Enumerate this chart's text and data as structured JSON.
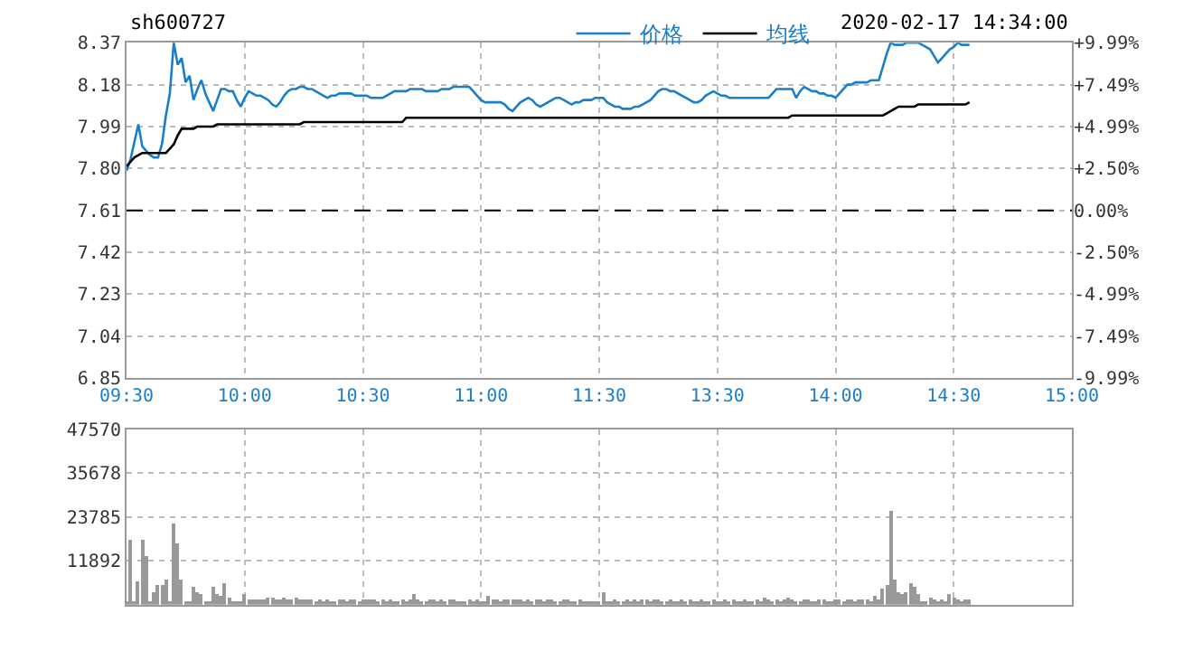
{
  "chart_data": [
    {
      "type": "line",
      "title": "sh600727",
      "annotations": [
        "2020-02-17 14:34:00"
      ],
      "legend": "top",
      "grid": true,
      "categories": [
        "09:30",
        null,
        null,
        null,
        null,
        null,
        null,
        null,
        null,
        null,
        null,
        null,
        null,
        null,
        null,
        null,
        null,
        null,
        null,
        null,
        null,
        null,
        null,
        null,
        null,
        null,
        null,
        null,
        null,
        null,
        "10:00",
        null,
        null,
        null,
        null,
        null,
        null,
        null,
        null,
        null,
        null,
        null,
        null,
        null,
        null,
        null,
        null,
        null,
        null,
        null,
        null,
        null,
        null,
        null,
        null,
        null,
        null,
        null,
        null,
        null,
        "10:30",
        null,
        null,
        null,
        null,
        null,
        null,
        null,
        null,
        null,
        null,
        null,
        null,
        null,
        null,
        null,
        null,
        null,
        null,
        null,
        null,
        null,
        null,
        null,
        null,
        null,
        null,
        null,
        null,
        null,
        "11:00",
        null,
        null,
        null,
        null,
        null,
        null,
        null,
        null,
        null,
        null,
        null,
        null,
        null,
        null,
        null,
        null,
        null,
        null,
        null,
        null,
        null,
        null,
        null,
        null,
        null,
        null,
        null,
        null,
        null,
        "11:30",
        null,
        null,
        null,
        null,
        null,
        null,
        null,
        null,
        null,
        null,
        null,
        null,
        null,
        null,
        null,
        null,
        null,
        null,
        null,
        null,
        null,
        null,
        null,
        null,
        null,
        null,
        null,
        null,
        null,
        "13:30",
        null,
        null,
        null,
        null,
        null,
        null,
        null,
        null,
        null,
        null,
        null,
        null,
        null,
        null,
        null,
        null,
        null,
        null,
        null,
        null,
        null,
        null,
        null,
        null,
        null,
        null,
        null,
        null,
        null,
        "14:00",
        null,
        null,
        null,
        null,
        null,
        null,
        null,
        null,
        null,
        null,
        null,
        null,
        null,
        null,
        null,
        null,
        null,
        null,
        null,
        null,
        null,
        null,
        null,
        null,
        null,
        null,
        null,
        null,
        null,
        "14:30",
        null,
        null,
        null,
        null,
        null,
        null,
        null,
        null,
        null,
        null,
        null,
        null,
        null,
        null,
        null,
        null,
        null,
        null,
        null,
        null,
        null,
        null,
        null,
        null,
        null,
        null,
        null,
        null,
        null,
        "15:00"
      ],
      "ylim": [
        6.85,
        8.37
      ],
      "yticks": [
        6.85,
        7.04,
        7.23,
        7.42,
        7.61,
        {
          "value": 7.8,
          "label": "7.80"
        },
        7.99,
        8.18,
        8.37
      ],
      "y2lim": [
        -9.99,
        9.99
      ],
      "y2ticks": [
        {
          "value": -9.99,
          "label": "-9.99%"
        },
        {
          "value": -7.49,
          "label": "-7.49%"
        },
        {
          "value": -4.99,
          "label": "-4.99%"
        },
        {
          "value": -2.5,
          "label": "-2.50%"
        },
        {
          "value": 0,
          "label": "0.00%"
        },
        {
          "value": 2.5,
          "label": "+2.50%"
        },
        {
          "value": 4.99,
          "label": "+4.99%"
        },
        {
          "value": 7.49,
          "label": "+7.49%"
        },
        {
          "value": 9.99,
          "label": "+9.99%"
        }
      ],
      "ref_lines": [
        {
          "axis": "y",
          "value": 7.61,
          "color": "#000000",
          "line_style": "dashed"
        }
      ],
      "series": [
        {
          "name": "价格",
          "color": "#1a7fc8",
          "values": [
            7.79,
            7.84,
            7.92,
            8.0,
            7.9,
            7.88,
            7.86,
            7.85,
            7.85,
            7.91,
            8.04,
            8.14,
            8.37,
            8.27,
            8.3,
            8.19,
            8.22,
            8.11,
            8.16,
            8.2,
            8.14,
            8.1,
            8.06,
            8.11,
            8.16,
            8.16,
            8.15,
            8.15,
            8.11,
            8.08,
            8.12,
            8.15,
            8.14,
            8.13,
            8.13,
            8.12,
            8.11,
            8.09,
            8.08,
            8.1,
            8.13,
            8.15,
            8.16,
            8.16,
            8.17,
            8.17,
            8.16,
            8.16,
            8.15,
            8.14,
            8.13,
            8.12,
            8.13,
            8.13,
            8.14,
            8.14,
            8.14,
            8.14,
            8.13,
            8.13,
            8.13,
            8.13,
            8.12,
            8.12,
            8.12,
            8.12,
            8.13,
            8.14,
            8.15,
            8.15,
            8.15,
            8.15,
            8.16,
            8.16,
            8.16,
            8.16,
            8.15,
            8.15,
            8.15,
            8.15,
            8.16,
            8.16,
            8.16,
            8.17,
            8.17,
            8.17,
            8.17,
            8.17,
            8.15,
            8.13,
            8.11,
            8.1,
            8.1,
            8.1,
            8.1,
            8.1,
            8.09,
            8.07,
            8.06,
            8.08,
            8.1,
            8.11,
            8.12,
            8.11,
            8.09,
            8.08,
            8.09,
            8.1,
            8.11,
            8.12,
            8.12,
            8.11,
            8.1,
            8.09,
            8.1,
            8.1,
            8.11,
            8.11,
            8.11,
            8.12,
            8.12,
            8.12,
            8.1,
            8.09,
            8.08,
            8.08,
            8.07,
            8.07,
            8.07,
            8.08,
            8.08,
            8.09,
            8.1,
            8.11,
            8.13,
            8.15,
            8.16,
            8.16,
            8.15,
            8.15,
            8.14,
            8.13,
            8.12,
            8.11,
            8.1,
            8.1,
            8.11,
            8.13,
            8.14,
            8.15,
            8.14,
            8.13,
            8.13,
            8.12,
            8.12,
            8.12,
            8.12,
            8.12,
            8.12,
            8.12,
            8.12,
            8.12,
            8.12,
            8.12,
            8.14,
            8.16,
            8.16,
            8.16,
            8.16,
            8.16,
            8.12,
            8.15,
            8.17,
            8.16,
            8.15,
            8.15,
            8.14,
            8.14,
            8.13,
            8.13,
            8.12,
            8.14,
            8.16,
            8.18,
            8.18,
            8.19,
            8.19,
            8.19,
            8.19,
            8.2,
            8.2,
            8.2,
            8.26,
            8.32,
            8.37,
            8.36,
            8.36,
            8.36,
            8.37,
            8.37,
            8.37,
            8.37,
            8.36,
            8.35,
            8.34,
            8.31,
            8.28,
            8.3,
            8.32,
            8.34,
            8.35,
            8.37,
            8.36,
            8.36,
            8.36,
            null,
            null,
            null,
            null,
            null,
            null,
            null,
            null,
            null,
            null,
            null,
            null,
            null,
            null,
            null,
            null,
            null,
            null,
            null,
            null,
            null,
            null,
            null,
            null,
            null,
            null
          ]
        },
        {
          "name": "均线",
          "color": "#000000",
          "values": [
            7.81,
            7.83,
            7.85,
            7.86,
            7.87,
            7.87,
            7.87,
            7.87,
            7.87,
            7.87,
            7.87,
            7.89,
            7.91,
            7.95,
            7.98,
            7.98,
            7.98,
            7.98,
            7.99,
            7.99,
            7.99,
            7.99,
            7.99,
            8.0,
            8.0,
            8.0,
            8.0,
            8.0,
            8.0,
            8.0,
            8.0,
            8.0,
            8.0,
            8.0,
            8.0,
            8.0,
            8.0,
            8.0,
            8.0,
            8.0,
            8.0,
            8.0,
            8.0,
            8.0,
            8.0,
            8.01,
            8.01,
            8.01,
            8.01,
            8.01,
            8.01,
            8.01,
            8.01,
            8.01,
            8.01,
            8.01,
            8.01,
            8.01,
            8.01,
            8.01,
            8.01,
            8.01,
            8.01,
            8.01,
            8.01,
            8.01,
            8.01,
            8.01,
            8.01,
            8.01,
            8.01,
            8.03,
            8.03,
            8.03,
            8.03,
            8.03,
            8.03,
            8.03,
            8.03,
            8.03,
            8.03,
            8.03,
            8.03,
            8.03,
            8.03,
            8.03,
            8.03,
            8.03,
            8.03,
            8.03,
            8.03,
            8.03,
            8.03,
            8.03,
            8.03,
            8.03,
            8.03,
            8.03,
            8.03,
            8.03,
            8.03,
            8.03,
            8.03,
            8.03,
            8.03,
            8.03,
            8.03,
            8.03,
            8.03,
            8.03,
            8.03,
            8.03,
            8.03,
            8.03,
            8.03,
            8.03,
            8.03,
            8.03,
            8.03,
            8.03,
            8.03,
            8.03,
            8.03,
            8.03,
            8.03,
            8.03,
            8.03,
            8.03,
            8.03,
            8.03,
            8.03,
            8.03,
            8.03,
            8.03,
            8.03,
            8.03,
            8.03,
            8.03,
            8.03,
            8.03,
            8.03,
            8.03,
            8.03,
            8.03,
            8.03,
            8.03,
            8.03,
            8.03,
            8.03,
            8.03,
            8.03,
            8.03,
            8.03,
            8.03,
            8.03,
            8.03,
            8.03,
            8.03,
            8.03,
            8.03,
            8.03,
            8.03,
            8.03,
            8.03,
            8.03,
            8.03,
            8.03,
            8.03,
            8.03,
            8.04,
            8.04,
            8.04,
            8.04,
            8.04,
            8.04,
            8.04,
            8.04,
            8.04,
            8.04,
            8.04,
            8.04,
            8.04,
            8.04,
            8.04,
            8.04,
            8.04,
            8.04,
            8.04,
            8.04,
            8.04,
            8.04,
            8.04,
            8.04,
            8.05,
            8.06,
            8.07,
            8.08,
            8.08,
            8.08,
            8.08,
            8.08,
            8.09,
            8.09,
            8.09,
            8.09,
            8.09,
            8.09,
            8.09,
            8.09,
            8.09,
            8.09,
            8.09,
            8.09,
            8.09,
            8.1,
            null,
            null,
            null,
            null,
            null,
            null,
            null,
            null,
            null,
            null,
            null,
            null,
            null,
            null,
            null,
            null,
            null,
            null,
            null,
            null,
            null,
            null,
            null,
            null,
            null,
            null
          ]
        }
      ]
    },
    {
      "type": "bar",
      "grid": true,
      "tick_labels": "y",
      "color": "#999999",
      "categories": [
        null,
        null,
        null,
        null,
        null,
        null,
        null,
        null,
        null,
        null,
        null,
        null,
        null,
        null,
        null,
        null,
        null,
        null,
        null,
        null,
        null,
        null,
        null,
        null,
        null,
        null,
        null,
        null,
        null,
        null,
        null,
        null,
        null,
        null,
        null,
        null,
        null,
        null,
        null,
        null,
        null,
        null,
        null,
        null,
        null,
        null,
        null,
        null,
        null,
        null,
        null,
        null,
        null,
        null,
        null,
        null,
        null,
        null,
        null,
        null,
        null,
        null,
        null,
        null,
        null,
        null,
        null,
        null,
        null,
        null,
        null,
        null,
        null,
        null,
        null,
        null,
        null,
        null,
        null,
        null,
        null,
        null,
        null,
        null,
        null,
        null,
        null,
        null,
        null,
        null,
        null,
        null,
        null,
        null,
        null,
        null,
        null,
        null,
        null,
        null,
        null,
        null,
        null,
        null,
        null,
        null,
        null,
        null,
        null,
        null,
        null,
        null,
        null,
        null,
        null,
        null,
        null,
        null,
        null,
        null,
        null,
        null,
        null,
        null,
        null,
        null,
        null,
        null,
        null,
        null,
        null,
        null,
        null,
        null,
        null,
        null,
        null,
        null,
        null,
        null,
        null,
        null,
        null,
        null,
        null,
        null,
        null,
        null,
        null,
        null,
        null,
        null,
        null,
        null,
        null,
        null,
        null,
        null,
        null,
        null,
        null,
        null,
        null,
        null,
        null,
        null,
        null,
        null,
        null,
        null,
        null,
        null,
        null,
        null,
        null,
        null,
        null,
        null,
        null,
        null,
        null,
        null,
        null,
        null,
        null,
        null,
        null,
        null,
        null,
        null,
        null,
        null,
        null,
        null,
        null,
        null,
        null,
        null,
        null,
        null,
        null,
        null,
        null,
        null,
        null,
        null,
        null,
        null,
        null,
        null,
        null,
        null,
        null,
        null,
        null,
        null,
        null,
        null,
        null,
        null,
        null,
        null,
        null,
        null,
        null,
        null,
        null,
        null,
        null,
        null,
        null,
        null,
        null,
        null,
        null,
        null,
        null,
        null,
        null,
        null,
        null
      ],
      "ylim": [
        0,
        47570
      ],
      "yticks": [
        {
          "value": 0,
          "label": null
        },
        11892,
        23785,
        35678,
        47570
      ],
      "values": [
        1000,
        17800,
        1200,
        6300,
        17800,
        13000,
        800,
        3200,
        5200,
        5200,
        6700,
        900,
        22000,
        16800,
        6700,
        800,
        1000,
        4800,
        3500,
        2700,
        1000,
        800,
        4800,
        2900,
        2400,
        5700,
        2100,
        900,
        700,
        800,
        2700,
        1300,
        1600,
        1300,
        1600,
        1300,
        1900,
        1900,
        1600,
        1300,
        1900,
        1300,
        1600,
        1900,
        1300,
        1300,
        1600,
        1300,
        1000,
        1300,
        1000,
        1300,
        800,
        1000,
        1300,
        1300,
        1000,
        1600,
        1300,
        1000,
        1300,
        1300,
        1600,
        1300,
        1000,
        1300,
        1000,
        1300,
        800,
        1000,
        1600,
        1000,
        1300,
        2700,
        1600,
        1000,
        1000,
        1300,
        1300,
        1000,
        1300,
        1000,
        1300,
        1300,
        1000,
        1000,
        1000,
        1300,
        1000,
        1300,
        1000,
        1000,
        2400,
        1300,
        1300,
        1000,
        1600,
        1600,
        1600,
        1300,
        1300,
        1000,
        1300,
        1000,
        1300,
        1300,
        1000,
        1600,
        1300,
        1000,
        1000,
        1300,
        1300,
        1000,
        1000,
        1300,
        1000,
        1000,
        800,
        800,
        800,
        3500,
        1000,
        800,
        1300,
        1000,
        1000,
        1300,
        1000,
        1300,
        1000,
        1600,
        1300,
        1000,
        1600,
        1300,
        1000,
        1000,
        1300,
        800,
        1000,
        1300,
        1000,
        1300,
        1000,
        1000,
        1300,
        1000,
        1000,
        1300,
        1000,
        1000,
        1300,
        1000,
        1300,
        1000,
        1000,
        1300,
        1000,
        1000,
        1300,
        1000,
        1900,
        1300,
        1000,
        1300,
        1000,
        1300,
        1900,
        1300,
        1000,
        1000,
        1300,
        1300,
        1000,
        1000,
        1300,
        1300,
        1000,
        1000,
        1300,
        1300,
        1000,
        1300,
        1300,
        1000,
        1300,
        1600,
        1300,
        1000,
        2400,
        1300,
        4300,
        5500,
        25400,
        6700,
        3500,
        2700,
        3200,
        5700,
        4800,
        2700,
        1100,
        1000,
        1900,
        1300,
        1000,
        1300,
        1000,
        2900,
        1900,
        1600,
        1000,
        1600,
        1300,
        null,
        null,
        null,
        null,
        null,
        null,
        null,
        null,
        null,
        null,
        null,
        null,
        null,
        null,
        null,
        null,
        null,
        null,
        null,
        null,
        null,
        null,
        null,
        null,
        null,
        null
      ]
    }
  ]
}
